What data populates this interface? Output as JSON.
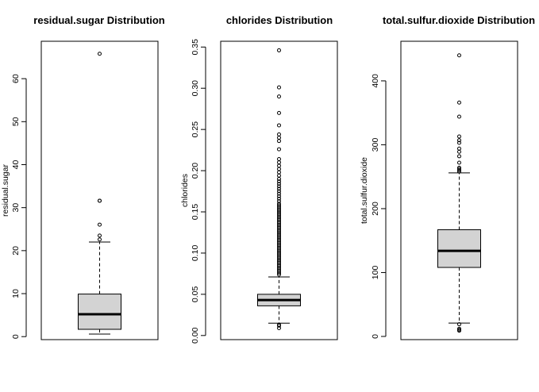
{
  "chart_data": [
    {
      "type": "boxplot",
      "title": "residual.sugar Distribution",
      "ylabel": "residual.sugar",
      "yticks": [
        0,
        10,
        20,
        30,
        40,
        50,
        60
      ],
      "ylim": [
        -0.7,
        68.7
      ],
      "stats": {
        "whisker_low": 0.6,
        "q1": 1.7,
        "median": 5.2,
        "q3": 9.9,
        "whisker_high": 22.0
      },
      "outliers": [
        22.6,
        23.5,
        26.05,
        31.6,
        31.6,
        65.8
      ],
      "box_color": "#d3d3d3"
    },
    {
      "type": "boxplot",
      "title": "chlorides Distribution",
      "ylabel": "chlorides",
      "yticks": [
        "0.00",
        "0.05",
        "0.10",
        "0.15",
        "0.20",
        "0.25",
        "0.30",
        "0.35"
      ],
      "ylim": [
        -0.005,
        0.357
      ],
      "stats": {
        "whisker_low": 0.015,
        "q1": 0.036,
        "median": 0.043,
        "q3": 0.05,
        "whisker_high": 0.071
      },
      "outliers": [
        0.009,
        0.012,
        0.013,
        0.074,
        0.076,
        0.078,
        0.08,
        0.082,
        0.084,
        0.086,
        0.088,
        0.09,
        0.092,
        0.094,
        0.096,
        0.098,
        0.1,
        0.102,
        0.104,
        0.106,
        0.108,
        0.11,
        0.112,
        0.114,
        0.116,
        0.118,
        0.12,
        0.122,
        0.124,
        0.126,
        0.128,
        0.13,
        0.132,
        0.134,
        0.136,
        0.138,
        0.14,
        0.142,
        0.144,
        0.146,
        0.148,
        0.15,
        0.152,
        0.154,
        0.156,
        0.158,
        0.16,
        0.163,
        0.166,
        0.169,
        0.172,
        0.175,
        0.178,
        0.181,
        0.184,
        0.187,
        0.19,
        0.194,
        0.198,
        0.202,
        0.206,
        0.21,
        0.214,
        0.226,
        0.236,
        0.24,
        0.244,
        0.255,
        0.27,
        0.29,
        0.301,
        0.346
      ],
      "box_color": "#d3d3d3"
    },
    {
      "type": "boxplot",
      "title": "total.sulfur.dioxide Distribution",
      "ylabel": "total.sulfur.dioxide",
      "yticks": [
        0,
        100,
        200,
        300,
        400
      ],
      "ylim": [
        -5,
        462
      ],
      "stats": {
        "whisker_low": 21,
        "q1": 108,
        "median": 134,
        "q3": 167,
        "whisker_high": 256
      },
      "outliers": [
        9,
        10,
        12,
        19,
        258,
        260,
        262,
        264,
        272,
        282,
        289,
        294,
        303,
        307,
        313,
        344,
        366,
        440
      ],
      "box_color": "#d3d3d3"
    }
  ]
}
